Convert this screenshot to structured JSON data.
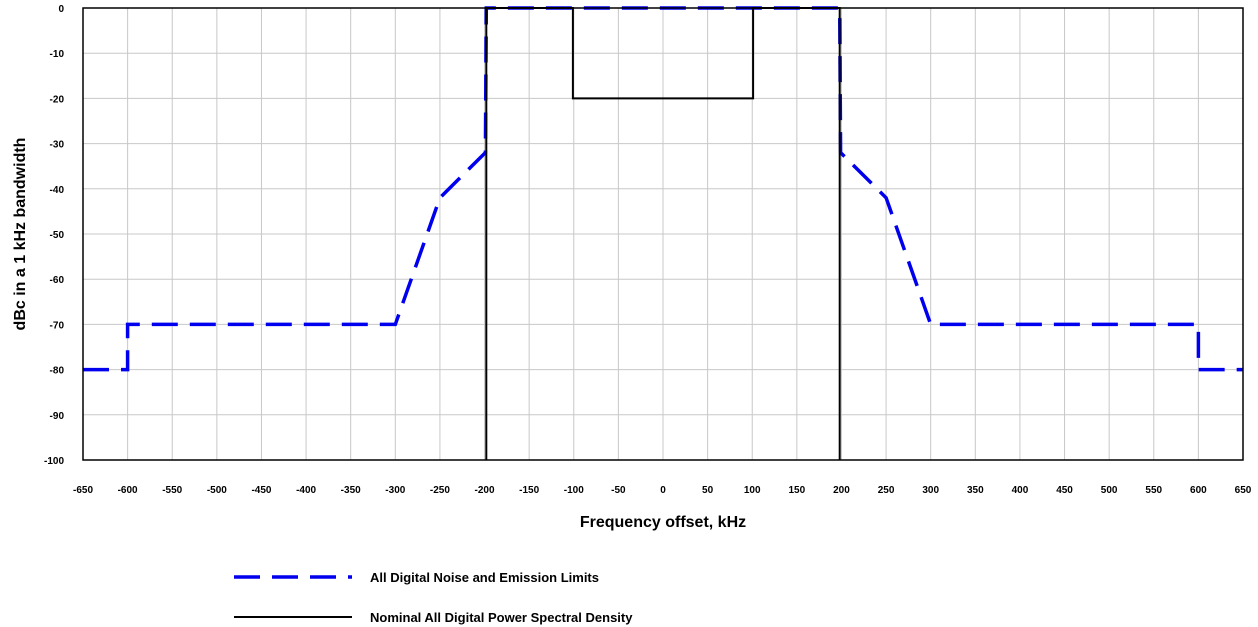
{
  "chart_data": {
    "type": "line",
    "xlabel": "Frequency offset, kHz",
    "ylabel": "dBc in a 1 kHz bandwidth",
    "xlim": [
      -650,
      650
    ],
    "ylim": [
      -100,
      0
    ],
    "xticks": [
      -650,
      -600,
      -550,
      -500,
      -450,
      -400,
      -350,
      -300,
      -250,
      -200,
      -150,
      -100,
      -50,
      0,
      50,
      100,
      150,
      200,
      250,
      300,
      350,
      400,
      450,
      500,
      550,
      600,
      650
    ],
    "yticks": [
      0,
      -10,
      -20,
      -30,
      -40,
      -50,
      -60,
      -70,
      -80,
      -90,
      -100
    ],
    "grid": true,
    "legend_position": "bottom",
    "series": [
      {
        "name": "All Digital Noise and Emission Limits",
        "color": "#0000ee",
        "style": "dashed",
        "x": [
          -650,
          -600,
          -600,
          -300,
          -250,
          -199,
          -198,
          198,
          199,
          250,
          300,
          600,
          600,
          650
        ],
        "y": [
          -80,
          -80,
          -70,
          -70,
          -42,
          -32,
          0,
          0,
          -32,
          -42,
          -70,
          -70,
          -80,
          -80
        ]
      },
      {
        "name": "Nominal All Digital Power Spectral Density",
        "color": "#000000",
        "style": "solid",
        "x": [
          -198,
          -198,
          -101,
          -101,
          101,
          101,
          198,
          198
        ],
        "y": [
          -100,
          0,
          0,
          -20,
          -20,
          0,
          0,
          -100
        ]
      }
    ]
  }
}
